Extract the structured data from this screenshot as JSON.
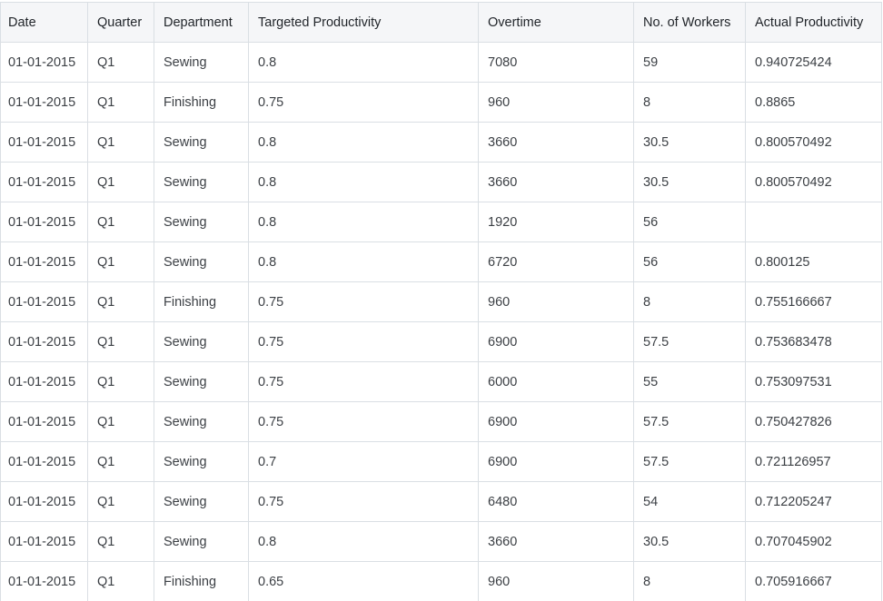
{
  "table": {
    "columns": [
      "Date",
      "Quarter",
      "Department",
      "Targeted Productivity",
      "Overtime",
      "No. of Workers",
      "Actual Productivity"
    ],
    "rows": [
      [
        "01-01-2015",
        "Q1",
        "Sewing",
        "0.8",
        "7080",
        "59",
        "0.940725424"
      ],
      [
        "01-01-2015",
        "Q1",
        "Finishing",
        "0.75",
        "960",
        "8",
        "0.8865"
      ],
      [
        "01-01-2015",
        "Q1",
        "Sewing",
        "0.8",
        "3660",
        "30.5",
        "0.800570492"
      ],
      [
        "01-01-2015",
        "Q1",
        "Sewing",
        "0.8",
        "3660",
        "30.5",
        "0.800570492"
      ],
      [
        "01-01-2015",
        "Q1",
        "Sewing",
        "0.8",
        "1920",
        "56",
        ""
      ],
      [
        "01-01-2015",
        "Q1",
        "Sewing",
        "0.8",
        "6720",
        "56",
        "0.800125"
      ],
      [
        "01-01-2015",
        "Q1",
        "Finishing",
        "0.75",
        "960",
        "8",
        "0.755166667"
      ],
      [
        "01-01-2015",
        "Q1",
        "Sewing",
        "0.75",
        "6900",
        "57.5",
        "0.753683478"
      ],
      [
        "01-01-2015",
        "Q1",
        "Sewing",
        "0.75",
        "6000",
        "55",
        "0.753097531"
      ],
      [
        "01-01-2015",
        "Q1",
        "Sewing",
        "0.75",
        "6900",
        "57.5",
        "0.750427826"
      ],
      [
        "01-01-2015",
        "Q1",
        "Sewing",
        "0.7",
        "6900",
        "57.5",
        "0.721126957"
      ],
      [
        "01-01-2015",
        "Q1",
        "Sewing",
        "0.75",
        "6480",
        "54",
        "0.712205247"
      ],
      [
        "01-01-2015",
        "Q1",
        "Sewing",
        "0.8",
        "3660",
        "30.5",
        "0.707045902"
      ],
      [
        "01-01-2015",
        "Q1",
        "Finishing",
        "0.65",
        "960",
        "8",
        "0.705916667"
      ]
    ]
  }
}
